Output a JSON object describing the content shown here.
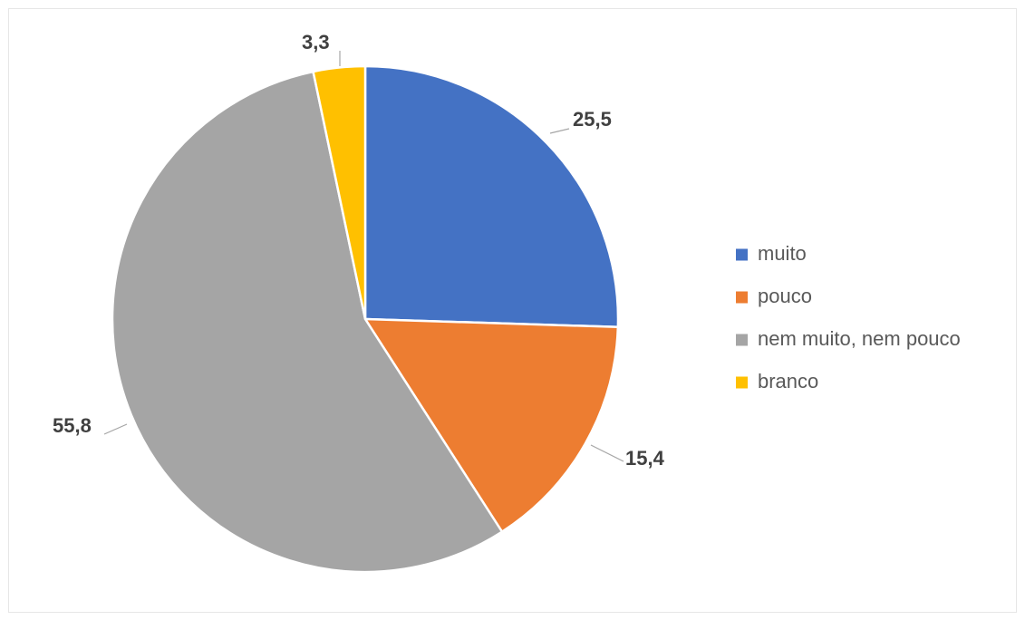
{
  "chart_data": {
    "type": "pie",
    "categories": [
      "muito",
      "pouco",
      "nem muito, nem pouco",
      "branco"
    ],
    "values": [
      25.5,
      15.4,
      55.8,
      3.3
    ],
    "data_labels": [
      "25,5",
      "15,4",
      "55,8",
      "3,3"
    ],
    "colors": [
      "#4472C4",
      "#ED7D31",
      "#A5A5A5",
      "#FFC000"
    ],
    "start_angle": "12 o'clock, clockwise",
    "legend_position": "right",
    "title": ""
  }
}
